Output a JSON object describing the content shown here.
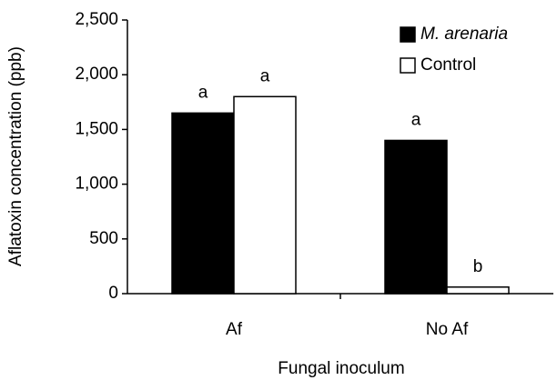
{
  "chart_data": {
    "type": "bar",
    "x_label": "Fungal inoculum",
    "y_label": "Aflatoxin concentration (ppb)",
    "categories": [
      "Af",
      "No Af"
    ],
    "series": [
      {
        "name": "M. arenaria",
        "color": "#000000",
        "values": [
          1650,
          1400
        ],
        "letters": [
          "a",
          "a"
        ]
      },
      {
        "name": "Control",
        "color": "#ffffff",
        "values": [
          1800,
          60
        ],
        "letters": [
          "a",
          "b"
        ]
      }
    ],
    "ylim": [
      0,
      2500
    ],
    "yticks": [
      {
        "value": 0,
        "label": "0"
      },
      {
        "value": 500,
        "label": "500"
      },
      {
        "value": 1000,
        "label": "1,000"
      },
      {
        "value": 1500,
        "label": "1,500"
      },
      {
        "value": 2000,
        "label": "2,000"
      },
      {
        "value": 2500,
        "label": "2,500"
      }
    ],
    "legend": "top-right"
  }
}
